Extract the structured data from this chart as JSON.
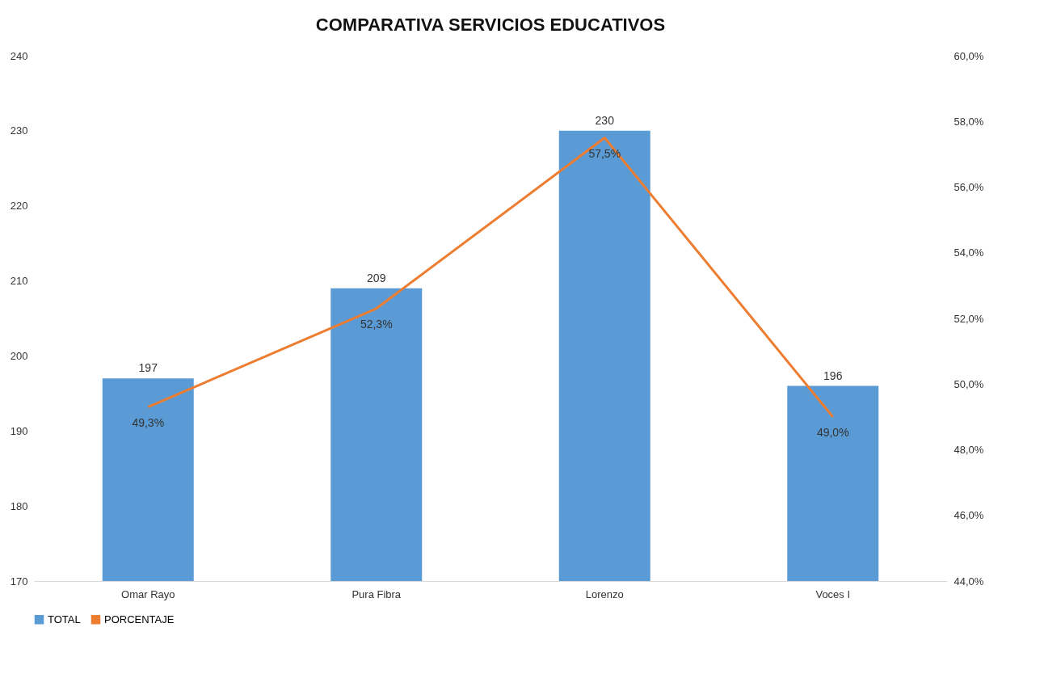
{
  "chart_data": {
    "type": "bar",
    "title": "COMPARATIVA SERVICIOS EDUCATIVOS",
    "categories": [
      "Omar Rayo",
      "Pura Fibra",
      "Lorenzo",
      "Voces I"
    ],
    "series": [
      {
        "name": "TOTAL",
        "color": "#5b9bd5",
        "values": [
          197,
          209,
          230,
          196
        ]
      },
      {
        "name": "PORCENTAJE",
        "type": "line",
        "axis": "y2",
        "color": "#ed7d31",
        "values": [
          49.3,
          52.3,
          57.5,
          49.0
        ],
        "value_labels": [
          "49,3%",
          "52,3%",
          "57,5%",
          "49,0%"
        ]
      }
    ],
    "data_labels": true,
    "ylim": [
      170,
      240
    ],
    "yticks": [
      170,
      180,
      190,
      200,
      210,
      220,
      230,
      240
    ],
    "y2lim": [
      44,
      60
    ],
    "y2ticks": [
      {
        "value": 44,
        "label": "44,0%"
      },
      {
        "value": 46,
        "label": "46,0%"
      },
      {
        "value": 48,
        "label": "48,0%"
      },
      {
        "value": 50,
        "label": "50,0%"
      },
      {
        "value": 52,
        "label": "52,0%"
      },
      {
        "value": 54,
        "label": "54,0%"
      },
      {
        "value": 56,
        "label": "56,0%"
      },
      {
        "value": 58,
        "label": "58,0%"
      },
      {
        "value": 60,
        "label": "60,0%"
      }
    ],
    "grid": false,
    "legend": "bottom",
    "marker": "none",
    "line_style": "solid"
  }
}
